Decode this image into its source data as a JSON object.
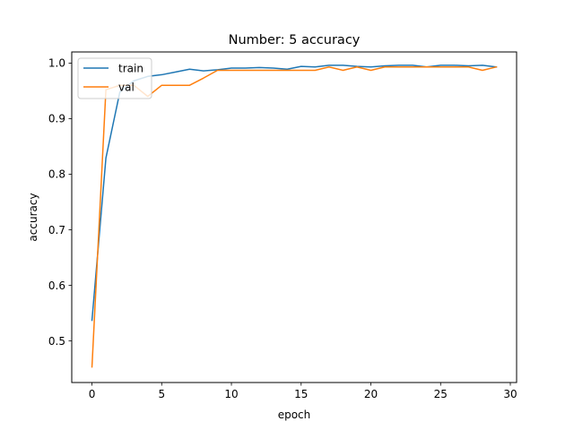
{
  "chart_data": {
    "type": "line",
    "title": "Number: 5 accuracy",
    "xlabel": "epoch",
    "ylabel": "accuracy",
    "xlim": [
      -1.45,
      30.45
    ],
    "ylim": [
      0.425,
      1.02
    ],
    "xticks": [
      0,
      5,
      10,
      15,
      20,
      25,
      30
    ],
    "yticks": [
      0.5,
      0.6,
      0.7,
      0.8,
      0.9,
      1.0
    ],
    "xtick_labels": [
      "0",
      "5",
      "10",
      "15",
      "20",
      "25",
      "30"
    ],
    "ytick_labels": [
      "0.5",
      "0.6",
      "0.7",
      "0.8",
      "0.9",
      "1.0"
    ],
    "grid": false,
    "legend_position": "upper-left",
    "x": [
      0,
      1,
      2,
      3,
      4,
      5,
      6,
      7,
      8,
      9,
      10,
      11,
      12,
      13,
      14,
      15,
      16,
      17,
      18,
      19,
      20,
      21,
      22,
      23,
      24,
      25,
      26,
      27,
      28,
      29
    ],
    "series": [
      {
        "name": "train",
        "color": "#1f77b4",
        "values": [
          0.537,
          0.829,
          0.948,
          0.968,
          0.976,
          0.979,
          0.984,
          0.989,
          0.986,
          0.988,
          0.991,
          0.991,
          0.992,
          0.991,
          0.989,
          0.994,
          0.993,
          0.996,
          0.996,
          0.994,
          0.993,
          0.995,
          0.996,
          0.996,
          0.993,
          0.996,
          0.996,
          0.995,
          0.996,
          0.993
        ]
      },
      {
        "name": "val",
        "color": "#ff7f0e",
        "values": [
          0.453,
          0.952,
          0.96,
          0.96,
          0.94,
          0.96,
          0.96,
          0.96,
          0.973,
          0.987,
          0.987,
          0.987,
          0.987,
          0.987,
          0.987,
          0.987,
          0.987,
          0.993,
          0.987,
          0.993,
          0.987,
          0.993,
          0.993,
          0.993,
          0.993,
          0.993,
          0.993,
          0.993,
          0.987,
          0.993
        ]
      }
    ]
  }
}
